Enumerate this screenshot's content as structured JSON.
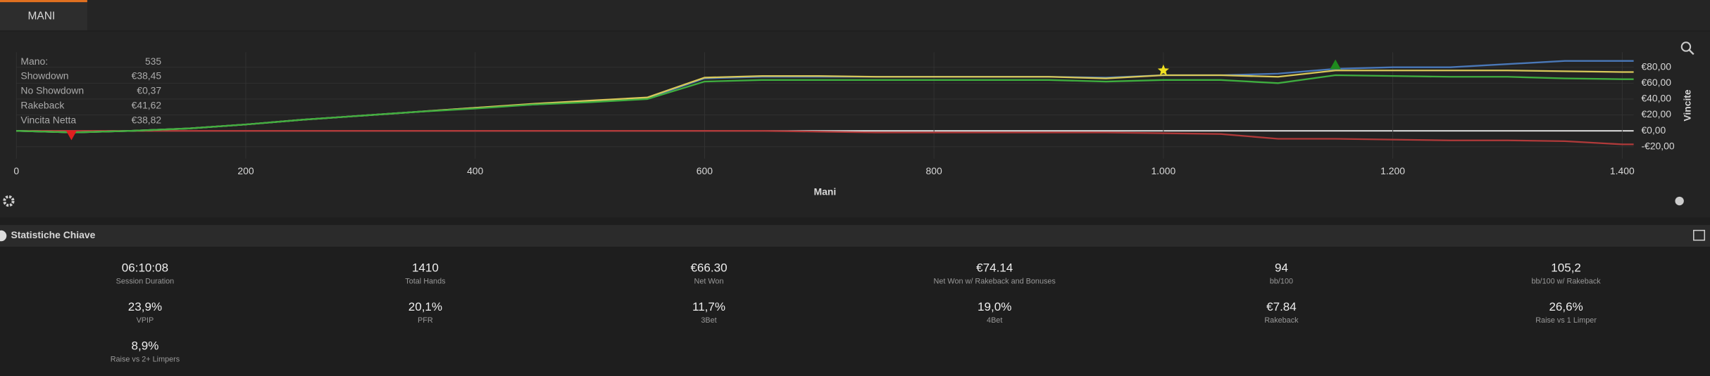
{
  "tab": "MANI",
  "info": [
    {
      "label": "Mano:",
      "value": "535"
    },
    {
      "label": "Showdown",
      "value": "€38,45"
    },
    {
      "label": "No Showdown",
      "value": "€0,37"
    },
    {
      "label": "Rakeback",
      "value": "€41,62"
    },
    {
      "label": "Vincita Netta",
      "value": "€38,82"
    }
  ],
  "chart_data": {
    "type": "line",
    "x_label": "Mani",
    "y_label": "Vincite",
    "x": [
      0,
      50,
      100,
      150,
      200,
      250,
      300,
      350,
      400,
      450,
      500,
      550,
      600,
      650,
      700,
      750,
      800,
      850,
      900,
      950,
      1000,
      1050,
      1100,
      1150,
      1200,
      1250,
      1300,
      1350,
      1400,
      1410
    ],
    "series": [
      {
        "color": "#b03a3a",
        "values": [
          0,
          0,
          0,
          0,
          0,
          0,
          0,
          0,
          0,
          0,
          0,
          0,
          0,
          0,
          -1,
          -2,
          -2,
          -2,
          -2,
          -2,
          -3,
          -4,
          -10,
          -10,
          -11,
          -12,
          -12,
          -13,
          -17,
          -17
        ]
      },
      {
        "color": "#4a78b8",
        "values": [
          0,
          -2,
          0,
          3,
          8,
          14,
          19,
          24,
          29,
          33,
          37,
          41,
          66,
          68,
          68,
          68,
          68,
          68,
          68,
          67,
          70,
          70,
          72,
          78,
          80,
          80,
          84,
          88,
          88,
          88
        ]
      },
      {
        "color": "#d8c85a",
        "values": [
          0,
          -2,
          0,
          3,
          8,
          14,
          19,
          24,
          29,
          34,
          38,
          42,
          67,
          69,
          69,
          68,
          68,
          68,
          68,
          66,
          70,
          70,
          68,
          76,
          76,
          76,
          76,
          75,
          74,
          74
        ]
      },
      {
        "color": "#3fae3f",
        "values": [
          0,
          -2,
          0,
          3,
          8,
          14,
          19,
          24,
          28,
          33,
          36,
          40,
          62,
          64,
          64,
          64,
          64,
          64,
          64,
          62,
          64,
          64,
          60,
          70,
          69,
          68,
          68,
          66,
          65,
          65
        ]
      }
    ],
    "markers": [
      {
        "x": 48,
        "y": -5,
        "color": "#e02020",
        "shape": "triangle-down"
      },
      {
        "x": 1000,
        "y": 76,
        "color": "#f0e020",
        "shape": "star"
      },
      {
        "x": 1150,
        "y": 83,
        "color": "#1e8a1e",
        "shape": "triangle-up"
      }
    ],
    "xlim": [
      0,
      1410
    ],
    "ylim": [
      -35,
      99
    ],
    "xticks": [
      0,
      200,
      400,
      600,
      800,
      {
        "value": 1000,
        "label": "1.000"
      },
      {
        "value": 1200,
        "label": "1.200"
      },
      {
        "value": 1400,
        "label": "1.400"
      }
    ],
    "yticks": [
      {
        "value": -20,
        "label": "-€20,00"
      },
      {
        "value": 0,
        "label": "€0,00"
      },
      {
        "value": 20,
        "label": "€20,00"
      },
      {
        "value": 40,
        "label": "€40,00"
      },
      {
        "value": 60,
        "label": "€60,00"
      },
      {
        "value": 80,
        "label": "€80,00"
      }
    ],
    "grid": true
  },
  "section_title": "Statistiche Chiave",
  "stats": [
    {
      "value": "06:10:08",
      "label": "Session Duration"
    },
    {
      "value": "1410",
      "label": "Total Hands"
    },
    {
      "value": "€66.30",
      "label": "Net Won"
    },
    {
      "value": "€74.14",
      "label": "Net Won w/ Rakeback and Bonuses"
    },
    {
      "value": "94",
      "label": "bb/100"
    },
    {
      "value": "105,2",
      "label": "bb/100 w/ Rakeback"
    },
    {
      "value": "23,9%",
      "label": "VPIP"
    },
    {
      "value": "20,1%",
      "label": "PFR"
    },
    {
      "value": "11,7%",
      "label": "3Bet"
    },
    {
      "value": "19,0%",
      "label": "4Bet"
    },
    {
      "value": "€7.84",
      "label": "Rakeback"
    },
    {
      "value": "26,6%",
      "label": "Raise vs 1 Limper"
    },
    {
      "value": "8,9%",
      "label": "Raise vs 2+ Limpers"
    }
  ]
}
